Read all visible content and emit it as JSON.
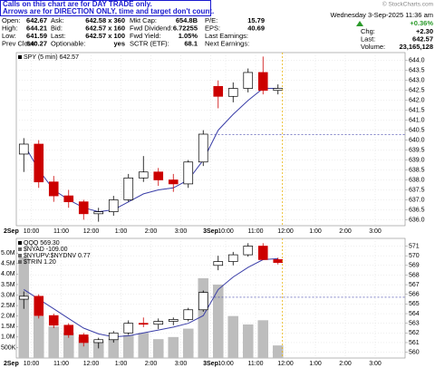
{
  "header": {
    "banner": [
      "Calls on this chart are for DAY TRADE only.",
      "Arrows are for DIRECTION ONLY, time and target don't count."
    ],
    "rows": [
      [
        [
          "Open:",
          "642.67"
        ],
        [
          "Ask:",
          "642.58 x 360"
        ],
        [
          "Mkt Cap:",
          "654.8B"
        ],
        [
          "P/E:",
          "15.79"
        ]
      ],
      [
        [
          "High:",
          "644.21"
        ],
        [
          "Bid:",
          "642.57 x 160"
        ],
        [
          "Fwd Dividend:",
          "6.72255"
        ],
        [
          "EPS:",
          "40.69"
        ]
      ],
      [
        [
          "Low:",
          "641.59"
        ],
        [
          "Last:",
          "642.57 x 100"
        ],
        [
          "Fwd Yield:",
          "1.05%"
        ],
        [
          "Last Earnings:",
          ""
        ]
      ],
      [
        [
          "Prev Close:",
          "640.27"
        ],
        [
          "Optionable:",
          "yes"
        ],
        [
          "SCTR (ETF):",
          "68.1"
        ],
        [
          "Next Earnings:",
          ""
        ]
      ]
    ],
    "date": "Wednesday 3-Sep-2025 11:36 am",
    "change_pct": "+0.36%",
    "right": [
      [
        "Chg:",
        "+2.30"
      ],
      [
        "Last:",
        "642.57"
      ],
      [
        "Volume:",
        "23,165,128"
      ]
    ],
    "watermark": "© StockCharts.com"
  },
  "chart_data": [
    {
      "type": "candlestick",
      "legend": [
        "SPY (5 min) 642.57"
      ],
      "categories": [
        "2Sep",
        "10:00",
        null,
        "11:00",
        null,
        "12:00",
        null,
        "1:00",
        null,
        "2:00",
        null,
        "3:00",
        null,
        "3Sep",
        "10:00",
        null,
        "11:00",
        null,
        "12:00",
        null,
        "1:00",
        null,
        "2:00",
        null,
        "3:00",
        null
      ],
      "open": [
        639.3,
        639.8,
        637.9,
        637.2,
        636.9,
        636.3,
        636.4,
        637.0,
        638.1,
        638.4,
        638.0,
        637.8,
        638.9,
        642.7,
        642.2,
        642.6,
        643.4,
        642.5,
        null,
        null,
        null,
        null,
        null,
        null,
        null,
        null
      ],
      "high": [
        640.1,
        640.0,
        638.2,
        637.5,
        637.0,
        636.6,
        637.2,
        638.3,
        639.2,
        638.6,
        638.3,
        639.0,
        640.5,
        643.0,
        642.9,
        643.6,
        644.2,
        642.8,
        null,
        null,
        null,
        null,
        null,
        null,
        null,
        null
      ],
      "low": [
        638.4,
        637.6,
        636.9,
        636.6,
        636.0,
        635.9,
        636.2,
        636.9,
        637.9,
        637.7,
        637.4,
        637.6,
        638.7,
        641.6,
        641.9,
        642.4,
        642.3,
        642.3,
        null,
        null,
        null,
        null,
        null,
        null,
        null,
        null
      ],
      "close": [
        639.8,
        637.9,
        637.2,
        636.9,
        636.3,
        636.4,
        637.0,
        638.1,
        638.4,
        638.0,
        637.8,
        638.9,
        640.3,
        642.2,
        642.6,
        643.4,
        642.5,
        642.6,
        null,
        null,
        null,
        null,
        null,
        null,
        null,
        null
      ],
      "up_color": "#000000",
      "down_color": "#cc0000",
      "ma": {
        "color": "#3a3ea8",
        "values": [
          639.8,
          638.5,
          637.5,
          637.0,
          636.6,
          636.4,
          636.5,
          636.9,
          637.3,
          637.5,
          637.6,
          638.0,
          639.0,
          640.5,
          641.3,
          642.0,
          642.6,
          642.6,
          null,
          null,
          null,
          null,
          null,
          null,
          null,
          null
        ]
      },
      "reference_line": 640.27,
      "ylim": [
        635.7,
        644.4
      ],
      "yticks": [
        {
          "value": 636,
          "label": "636.0"
        },
        636.5,
        {
          "value": 637,
          "label": "637.0"
        },
        637.5,
        {
          "value": 638,
          "label": "638.0"
        },
        638.5,
        {
          "value": 639,
          "label": "639.0"
        },
        639.5,
        {
          "value": 640,
          "label": "640.0"
        },
        640.5,
        {
          "value": 641,
          "label": "641.0"
        },
        641.5,
        {
          "value": 642,
          "label": "642.0"
        },
        642.5,
        {
          "value": 643,
          "label": "643.0"
        },
        643.5,
        {
          "value": 644,
          "label": "644.0"
        }
      ],
      "grid": true
    },
    {
      "type": "candlestick",
      "legend": [
        "QQQ 569.30",
        "$NYAD -109.00",
        "$NYUPV:$NYDNV 0.77",
        "$TRIN 1.20"
      ],
      "categories": [
        "2Sep",
        "10:00",
        null,
        "11:00",
        null,
        "12:00",
        null,
        "1:00",
        null,
        "2:00",
        null,
        "3:00",
        null,
        "3Sep",
        "10:00",
        null,
        "11:00",
        null,
        "12:00",
        null,
        "1:00",
        null,
        "2:00",
        null,
        "3:00",
        null
      ],
      "open": [
        565.5,
        565.8,
        563.8,
        562.8,
        561.8,
        561.0,
        561.3,
        562.0,
        563.0,
        562.9,
        563.2,
        563.4,
        564.4,
        569.0,
        569.4,
        570.1,
        571.0,
        569.6,
        null,
        null,
        null,
        null,
        null,
        null,
        null,
        null
      ],
      "high": [
        566.3,
        566.0,
        564.0,
        563.0,
        562.0,
        561.5,
        562.2,
        563.3,
        563.6,
        563.5,
        563.6,
        564.6,
        566.4,
        570.0,
        570.4,
        571.3,
        571.3,
        569.8,
        null,
        null,
        null,
        null,
        null,
        null,
        null,
        null
      ],
      "low": [
        564.5,
        563.5,
        562.5,
        561.5,
        560.6,
        560.4,
        561.0,
        561.8,
        562.6,
        562.4,
        562.8,
        563.2,
        564.2,
        568.5,
        569.0,
        569.9,
        569.6,
        569.1,
        null,
        null,
        null,
        null,
        null,
        null,
        null,
        null
      ],
      "close": [
        565.8,
        563.8,
        562.8,
        561.8,
        561.0,
        561.3,
        562.0,
        563.0,
        562.9,
        563.2,
        563.4,
        564.4,
        566.2,
        569.4,
        570.1,
        571.0,
        569.6,
        569.3,
        null,
        null,
        null,
        null,
        null,
        null,
        null,
        null
      ],
      "up_color": "#000000",
      "down_color": "#cc0000",
      "ma": {
        "color": "#3a3ea8",
        "values": [
          566.5,
          565.5,
          564.5,
          563.5,
          562.5,
          561.9,
          561.6,
          561.7,
          562.0,
          562.3,
          562.6,
          563.0,
          563.8,
          566.5,
          567.8,
          568.8,
          569.6,
          569.7,
          null,
          null,
          null,
          null,
          null,
          null,
          null,
          null
        ]
      },
      "volume": {
        "color": "#bdbdbd",
        "axis": "y2",
        "values": [
          4800000,
          2000000,
          1500000,
          1200000,
          1000000,
          800000,
          900000,
          1100000,
          1200000,
          900000,
          1000000,
          1400000,
          3800000,
          3500000,
          2000000,
          1600000,
          1800000,
          600000,
          null,
          null,
          null,
          null,
          null,
          null,
          null,
          null
        ]
      },
      "reference_line": 565.7,
      "ylim": [
        559.4,
        571.8
      ],
      "yticks": [
        560,
        561,
        562,
        563,
        564,
        565,
        566,
        567,
        568,
        569,
        570,
        571
      ],
      "y2lim": [
        0,
        5700000
      ],
      "y2ticks": [
        {
          "value": 500000,
          "label": "500K"
        },
        {
          "value": 1000000,
          "label": "1.0M"
        },
        {
          "value": 1500000,
          "label": "1.5M"
        },
        {
          "value": 2000000,
          "label": "2.0M"
        },
        {
          "value": 2500000,
          "label": "2.5M"
        },
        {
          "value": 3000000,
          "label": "3.0M"
        },
        {
          "value": 3500000,
          "label": "3.5M"
        },
        {
          "value": 4000000,
          "label": "4.0M"
        },
        {
          "value": 4500000,
          "label": "4.5M"
        },
        {
          "value": 5000000,
          "label": "5.0M"
        }
      ],
      "grid": true
    }
  ]
}
